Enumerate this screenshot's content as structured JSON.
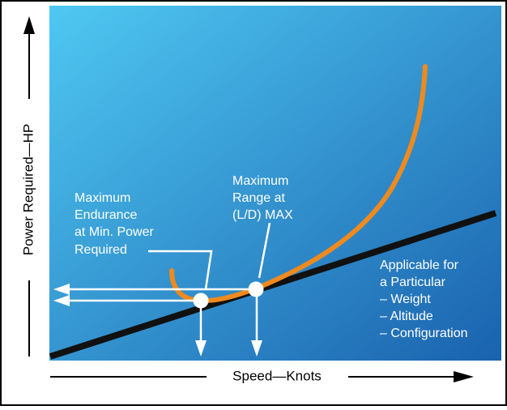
{
  "axes": {
    "y_label": "Power Required—HP",
    "x_label": "Speed—Knots"
  },
  "annotations": {
    "endurance": [
      "Maximum",
      "Endurance",
      "at Min. Power",
      "Required"
    ],
    "range": [
      "Maximum",
      "Range at",
      "(L/D) MAX"
    ],
    "applicable": [
      "Applicable for",
      "a Particular",
      "– Weight",
      "– Altitude",
      "– Configuration"
    ]
  },
  "colors": {
    "panel_top_left": "#4fc8f2",
    "panel_bottom_right": "#1a62ae",
    "power_curve": "#ef8a1e",
    "tangent_line": "#111111",
    "indicator": "#ffffff",
    "axis": "#000000"
  }
}
